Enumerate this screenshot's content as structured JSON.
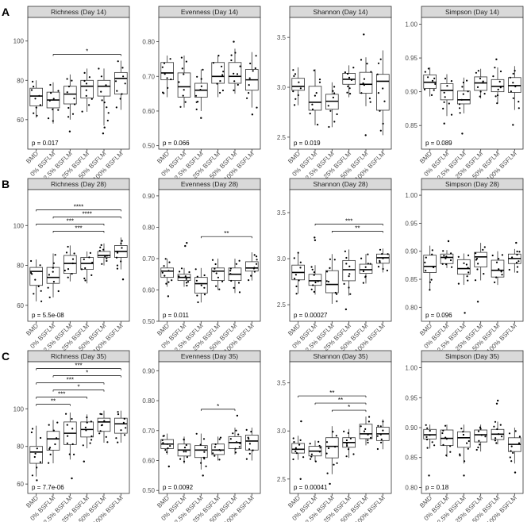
{
  "groups": [
    "BMD",
    "0% BSFLM",
    "12.5% BSFLM",
    "25% BSFLM",
    "50% BSFLM",
    "100% BSFLM"
  ],
  "rows": [
    {
      "letter": "A",
      "day": "Day 14"
    },
    {
      "letter": "B",
      "day": "Day 28"
    },
    {
      "letter": "C",
      "day": "Day 35"
    }
  ],
  "colors": {
    "strip_fill": "#d9d9d9",
    "box_stroke": "#333333",
    "point": "#000000",
    "panel_border": "#333333"
  },
  "chart_data": [
    {
      "type": "box",
      "title": "Richness (Day 14)",
      "yticks": [
        60,
        80,
        100
      ],
      "ylim": [
        45,
        112
      ],
      "pvalue": "p = 0.017",
      "boxes": [
        [
          61,
          67,
          72,
          76,
          80
        ],
        [
          58,
          66,
          70,
          74,
          79
        ],
        [
          60,
          68,
          73,
          77,
          83
        ],
        [
          64,
          71,
          77,
          80,
          86
        ],
        [
          57,
          72,
          77,
          80,
          86
        ],
        [
          65,
          73,
          81,
          84,
          90
        ]
      ],
      "outliers": [
        [],
        [],
        [
          54
        ],
        [],
        [
          53,
          56
        ],
        []
      ],
      "signif": [
        {
          "from": 1,
          "to": 5,
          "label": "*"
        }
      ]
    },
    {
      "type": "box",
      "title": "Evenness (Day 14)",
      "yticks": [
        0.5,
        0.6,
        0.7,
        0.8
      ],
      "ylim": [
        0.49,
        0.87
      ],
      "pvalue": "p = 0.066",
      "boxes": [
        [
          0.64,
          0.69,
          0.71,
          0.74,
          0.76
        ],
        [
          0.61,
          0.64,
          0.67,
          0.71,
          0.76
        ],
        [
          0.6,
          0.64,
          0.66,
          0.68,
          0.72
        ],
        [
          0.64,
          0.68,
          0.7,
          0.74,
          0.76
        ],
        [
          0.65,
          0.68,
          0.7,
          0.74,
          0.78
        ],
        [
          0.61,
          0.66,
          0.69,
          0.72,
          0.77
        ]
      ],
      "outliers": [
        [],
        [],
        [
          0.58
        ],
        [],
        [
          0.8
        ],
        [
          0.59
        ]
      ],
      "signif": []
    },
    {
      "type": "box",
      "title": "Shannon (Day 14)",
      "yticks": [
        2.5,
        3.0,
        3.5
      ],
      "ylim": [
        2.38,
        3.7
      ],
      "pvalue": "p = 0.019",
      "boxes": [
        [
          2.82,
          2.97,
          3.01,
          3.09,
          3.2
        ],
        [
          2.62,
          2.77,
          2.85,
          3.01,
          3.18
        ],
        [
          2.6,
          2.78,
          2.86,
          2.93,
          3.05
        ],
        [
          2.9,
          3.03,
          3.08,
          3.14,
          3.22
        ],
        [
          2.81,
          2.94,
          3.03,
          3.15,
          3.3
        ],
        [
          2.52,
          2.77,
          3.06,
          3.13,
          3.37
        ]
      ],
      "outliers": [
        [],
        [],
        [],
        [],
        [
          2.52,
          3.53
        ],
        []
      ],
      "signif": []
    },
    {
      "type": "box",
      "title": "Simpson (Day 14)",
      "yticks": [
        0.85,
        0.9,
        0.95,
        1.0
      ],
      "ylim": [
        0.815,
        1.01
      ],
      "pvalue": "p = 0.089",
      "boxes": [
        [
          0.893,
          0.905,
          0.914,
          0.925,
          0.936
        ],
        [
          0.864,
          0.888,
          0.902,
          0.912,
          0.926
        ],
        [
          0.868,
          0.882,
          0.888,
          0.901,
          0.921
        ],
        [
          0.89,
          0.902,
          0.913,
          0.922,
          0.934
        ],
        [
          0.883,
          0.9,
          0.908,
          0.918,
          0.936
        ],
        [
          0.873,
          0.899,
          0.909,
          0.921,
          0.938
        ]
      ],
      "outliers": [
        [],
        [
          0.853
        ],
        [
          0.838
        ],
        [],
        [
          0.948
        ],
        [
          0.851
        ]
      ],
      "signif": []
    },
    {
      "type": "box",
      "title": "Richness (Day 28)",
      "yticks": [
        60,
        80,
        100
      ],
      "ylim": [
        52,
        118
      ],
      "pvalue": "p = 5.5e-08",
      "boxes": [
        [
          62,
          70,
          77,
          79,
          83
        ],
        [
          64,
          71,
          74,
          79,
          86
        ],
        [
          72,
          76,
          81,
          85,
          90
        ],
        [
          71,
          78,
          81,
          84,
          87
        ],
        [
          80,
          84,
          85,
          87,
          91
        ],
        [
          78,
          84,
          87,
          90,
          94
        ]
      ],
      "outliers": [
        [],
        [],
        [],
        [],
        [],
        [
          73
        ]
      ],
      "signif": [
        {
          "from": 0,
          "to": 5,
          "label": "****"
        },
        {
          "from": 1,
          "to": 5,
          "label": "****"
        },
        {
          "from": 0,
          "to": 4,
          "label": "***"
        },
        {
          "from": 1,
          "to": 4,
          "label": "***"
        }
      ]
    },
    {
      "type": "box",
      "title": "Evenness (Day 28)",
      "yticks": [
        0.5,
        0.6,
        0.7,
        0.8,
        0.9
      ],
      "ylim": [
        0.5,
        0.92
      ],
      "pvalue": "p = 0.011",
      "boxes": [
        [
          0.61,
          0.64,
          0.66,
          0.67,
          0.7
        ],
        [
          0.61,
          0.63,
          0.64,
          0.65,
          0.67
        ],
        [
          0.56,
          0.59,
          0.62,
          0.64,
          0.67
        ],
        [
          0.6,
          0.63,
          0.66,
          0.67,
          0.7
        ],
        [
          0.59,
          0.63,
          0.65,
          0.67,
          0.7
        ],
        [
          0.63,
          0.66,
          0.67,
          0.69,
          0.72
        ]
      ],
      "outliers": [
        [
          0.58
        ],
        [
          0.74,
          0.75
        ],
        [],
        [],
        [],
        []
      ],
      "signif": [
        {
          "from": 2,
          "to": 5,
          "label": "**"
        }
      ]
    },
    {
      "type": "box",
      "title": "Shannon (Day 28)",
      "yticks": [
        2.5,
        3.0,
        3.5
      ],
      "ylim": [
        2.32,
        3.75
      ],
      "pvalue": "p = 0.00027",
      "boxes": [
        [
          2.62,
          2.77,
          2.85,
          2.93,
          3.07
        ],
        [
          2.61,
          2.71,
          2.76,
          2.83,
          2.93
        ],
        [
          2.51,
          2.63,
          2.72,
          2.87,
          3.05
        ],
        [
          2.6,
          2.76,
          2.88,
          2.98,
          3.1
        ],
        [
          2.73,
          2.84,
          2.88,
          2.94,
          3.05
        ],
        [
          2.85,
          2.95,
          3.01,
          3.05,
          3.11
        ]
      ],
      "outliers": [
        [],
        [
          3.2,
          3.23
        ],
        [],
        [
          2.45
        ],
        [],
        []
      ],
      "signif": [
        {
          "from": 1,
          "to": 5,
          "label": "***"
        },
        {
          "from": 2,
          "to": 5,
          "label": "**"
        }
      ]
    },
    {
      "type": "box",
      "title": "Simpson (Day 28)",
      "yticks": [
        0.8,
        0.85,
        0.9,
        0.95,
        1.0
      ],
      "ylim": [
        0.775,
        1.01
      ],
      "pvalue": "p = 0.096",
      "boxes": [
        [
          0.83,
          0.862,
          0.873,
          0.893,
          0.91
        ],
        [
          0.87,
          0.878,
          0.889,
          0.895,
          0.902
        ],
        [
          0.84,
          0.859,
          0.869,
          0.885,
          0.896
        ],
        [
          0.848,
          0.872,
          0.89,
          0.898,
          0.915
        ],
        [
          0.84,
          0.854,
          0.866,
          0.884,
          0.9
        ],
        [
          0.862,
          0.878,
          0.887,
          0.895,
          0.904
        ]
      ],
      "outliers": [
        [],
        [
          0.918
        ],
        [
          0.79
        ],
        [
          0.81
        ],
        [],
        [
          0.915
        ]
      ],
      "signif": []
    },
    {
      "type": "box",
      "title": "Richness (Day 35)",
      "yticks": [
        60,
        80,
        100
      ],
      "ylim": [
        55,
        125
      ],
      "pvalue": "p = 7.7e-06",
      "boxes": [
        [
          64,
          71,
          77,
          80,
          91
        ],
        [
          71,
          78,
          84,
          88,
          94
        ],
        [
          73,
          81,
          87,
          93,
          98
        ],
        [
          79,
          85,
          89,
          93,
          97
        ],
        [
          82,
          88,
          93,
          95,
          99
        ],
        [
          82,
          87,
          92,
          95,
          99
        ]
      ],
      "outliers": [
        [
          62
        ],
        [],
        [
          63
        ],
        [
          72
        ],
        [],
        []
      ],
      "signif": [
        {
          "from": 0,
          "to": 5,
          "label": "***"
        },
        {
          "from": 1,
          "to": 5,
          "label": "*"
        },
        {
          "from": 0,
          "to": 4,
          "label": "***"
        },
        {
          "from": 1,
          "to": 4,
          "label": "*"
        },
        {
          "from": 0,
          "to": 3,
          "label": "***"
        },
        {
          "from": 0,
          "to": 2,
          "label": "**"
        }
      ]
    },
    {
      "type": "box",
      "title": "Evenness (Day 35)",
      "yticks": [
        0.5,
        0.6,
        0.7,
        0.8,
        0.9
      ],
      "ylim": [
        0.49,
        0.93
      ],
      "pvalue": "p = 0.0092",
      "boxes": [
        [
          0.62,
          0.64,
          0.655,
          0.67,
          0.69
        ],
        [
          0.59,
          0.615,
          0.635,
          0.655,
          0.68
        ],
        [
          0.57,
          0.61,
          0.635,
          0.65,
          0.69
        ],
        [
          0.6,
          0.62,
          0.635,
          0.655,
          0.68
        ],
        [
          0.62,
          0.64,
          0.66,
          0.68,
          0.71
        ],
        [
          0.6,
          0.635,
          0.665,
          0.685,
          0.71
        ]
      ],
      "outliers": [
        [
          0.58
        ],
        [],
        [
          0.55
        ],
        [],
        [
          0.75
        ],
        []
      ],
      "signif": [
        {
          "from": 2,
          "to": 4,
          "label": "*"
        }
      ]
    },
    {
      "type": "box",
      "title": "Shannon (Day 35)",
      "yticks": [
        2.5,
        3.0,
        3.5
      ],
      "ylim": [
        2.35,
        3.72
      ],
      "pvalue": "p = 0.00041",
      "boxes": [
        [
          2.7,
          2.77,
          2.81,
          2.87,
          2.95
        ],
        [
          2.68,
          2.74,
          2.79,
          2.84,
          2.9
        ],
        [
          2.55,
          2.72,
          2.84,
          2.93,
          3.05
        ],
        [
          2.72,
          2.83,
          2.88,
          2.93,
          3.02
        ],
        [
          2.85,
          2.92,
          2.97,
          3.07,
          3.15
        ],
        [
          2.81,
          2.9,
          2.97,
          3.04,
          3.12
        ]
      ],
      "outliers": [
        [
          2.5,
          3.1
        ],
        [],
        [
          2.45
        ],
        [],
        [],
        []
      ],
      "signif": [
        {
          "from": 0,
          "to": 4,
          "label": "**"
        },
        {
          "from": 1,
          "to": 4,
          "label": "**"
        },
        {
          "from": 2,
          "to": 4,
          "label": "*"
        }
      ]
    },
    {
      "type": "box",
      "title": "Simpson (Day 35)",
      "yticks": [
        0.8,
        0.85,
        0.9,
        0.95,
        1.0
      ],
      "ylim": [
        0.79,
        1.01
      ],
      "pvalue": "p = 0.18",
      "boxes": [
        [
          0.865,
          0.881,
          0.888,
          0.897,
          0.905
        ],
        [
          0.851,
          0.87,
          0.882,
          0.896,
          0.905
        ],
        [
          0.84,
          0.867,
          0.883,
          0.893,
          0.905
        ],
        [
          0.86,
          0.876,
          0.888,
          0.896,
          0.905
        ],
        [
          0.872,
          0.88,
          0.889,
          0.897,
          0.91
        ],
        [
          0.84,
          0.86,
          0.872,
          0.883,
          0.9
        ]
      ],
      "outliers": [
        [
          0.82
        ],
        [],
        [
          0.82
        ],
        [],
        [
          0.94,
          0.945
        ],
        [
          0.825
        ]
      ],
      "signif": []
    }
  ]
}
